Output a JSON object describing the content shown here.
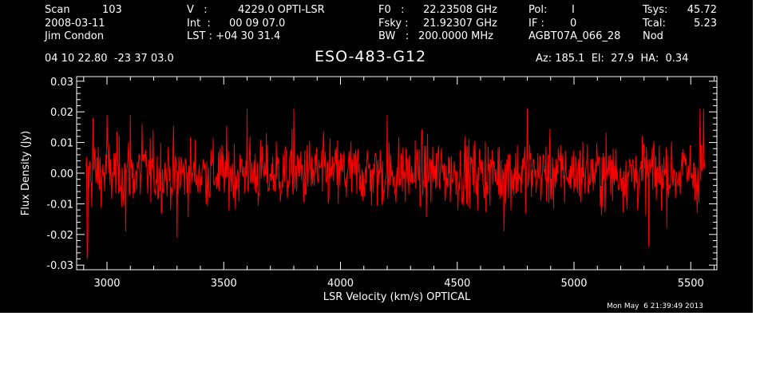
{
  "header": {
    "scan_label": "Scan",
    "scan_value": "103",
    "date": "2008-03-11",
    "observer": "Jim Condon",
    "v_label": "V   :",
    "v_value": "4229.0 OPTI-LSR",
    "int_label": "Int  :",
    "int_value": "00 09 07.0",
    "lst_label": "LST : +04 30 31.4",
    "f0_label": "F0   :",
    "f0_value": "22.23508 GHz",
    "fsky_label": "Fsky :",
    "fsky_value": "21.92307 GHz",
    "bw_label": "BW   :",
    "bw_value": "200.0000 MHz",
    "pol_label": "Pol:",
    "pol_value": "I",
    "if_label": "IF :",
    "if_value": "0",
    "project": "AGBT07A_066_28",
    "tsys_label": "Tsys:",
    "tsys_value": "45.72",
    "tcal_label": "Tcal:",
    "tcal_value": "5.23",
    "mode": "Nod",
    "coords": "04 10 22.80  -23 37 03.0",
    "source": "ESO-483-G12",
    "az_el_ha": "Az: 185.1  El:  27.9  HA:  0.34",
    "timestamp": "Mon May  6 21:39:49 2013"
  },
  "chart_data": {
    "type": "line",
    "xlabel": "LSR Velocity (km/s) OPTICAL",
    "ylabel": "Flux Density (Jy)",
    "xlim": [
      2870,
      5612
    ],
    "ylim": [
      -0.0315,
      0.0315
    ],
    "x_ticks": [
      3000,
      3500,
      4000,
      4500,
      5000,
      5500
    ],
    "y_ticks": [
      -0.03,
      -0.02,
      -0.01,
      0.0,
      0.01,
      0.02,
      0.03
    ],
    "x_tick_labels": [
      "3000",
      "3500",
      "4000",
      "4500",
      "5000",
      "5500"
    ],
    "y_tick_labels": [
      "-0.03",
      "-0.02",
      "-0.01",
      "0.00",
      "0.01",
      "0.02",
      "0.03"
    ],
    "grid": false,
    "series": [
      {
        "color": "#ff0000",
        "x_start": 2910,
        "x_end": 5560,
        "x_step": 2.5,
        "noise_rms": 0.0075,
        "mean": 0.0,
        "points": [
          [
            2910,
            0.002
          ],
          [
            2915,
            -0.028
          ],
          [
            2918,
            -0.026
          ],
          [
            2925,
            0.004
          ],
          [
            2940,
            0.018
          ],
          [
            3000,
            0.019
          ],
          [
            3080,
            -0.019
          ],
          [
            3100,
            0.019
          ],
          [
            3150,
            0.016
          ],
          [
            3300,
            -0.021
          ],
          [
            3600,
            0.021
          ],
          [
            3800,
            0.021
          ],
          [
            4200,
            0.019
          ],
          [
            4700,
            -0.019
          ],
          [
            4800,
            0.021
          ],
          [
            5320,
            -0.024
          ],
          [
            5540,
            0.021
          ],
          [
            5555,
            0.021
          ]
        ]
      }
    ]
  }
}
